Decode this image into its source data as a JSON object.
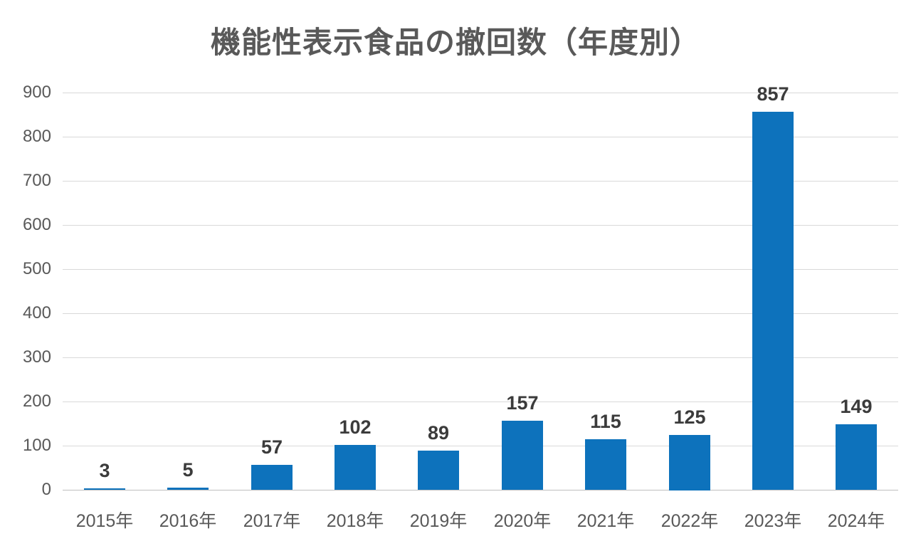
{
  "chart_data": {
    "type": "bar",
    "title": "機能性表示食品の撤回数（年度別）",
    "categories": [
      "2015年",
      "2016年",
      "2017年",
      "2018年",
      "2019年",
      "2020年",
      "2021年",
      "2022年",
      "2023年",
      "2024年"
    ],
    "values": [
      3,
      5,
      57,
      102,
      89,
      157,
      115,
      125,
      857,
      149
    ],
    "xlabel": "",
    "ylabel": "",
    "ylim": [
      0,
      900
    ],
    "ytick_step": 100,
    "grid": true,
    "legend_position": "none",
    "bar_color": "#0d72bc",
    "gridline_color": "#d9d9d9",
    "axis_line_color": "#bfbfbf",
    "title_color": "#595959",
    "tick_label_color": "#595959",
    "value_label_color": "#3b3b3b"
  }
}
